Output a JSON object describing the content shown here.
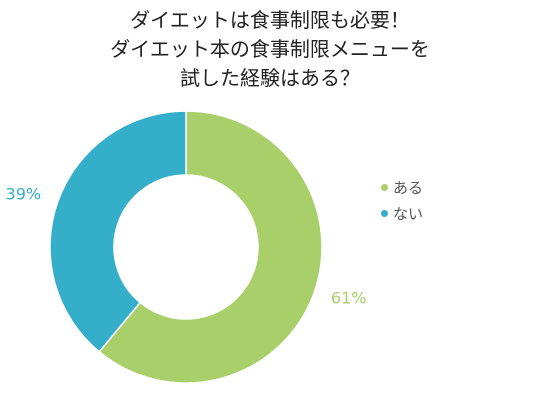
{
  "chart_data": {
    "type": "pie",
    "donut": true,
    "title_lines": [
      "ダイエットは食事制限も必要！",
      "ダイエット本の食事制限メニューを",
      "試した経験はある？"
    ],
    "slices": [
      {
        "label": "ある",
        "value": 61,
        "value_label": "61%",
        "color": "#a8cf6a"
      },
      {
        "label": "ない",
        "value": 39,
        "value_label": "39%",
        "color": "#35aec9"
      }
    ],
    "legend_position": "right"
  }
}
